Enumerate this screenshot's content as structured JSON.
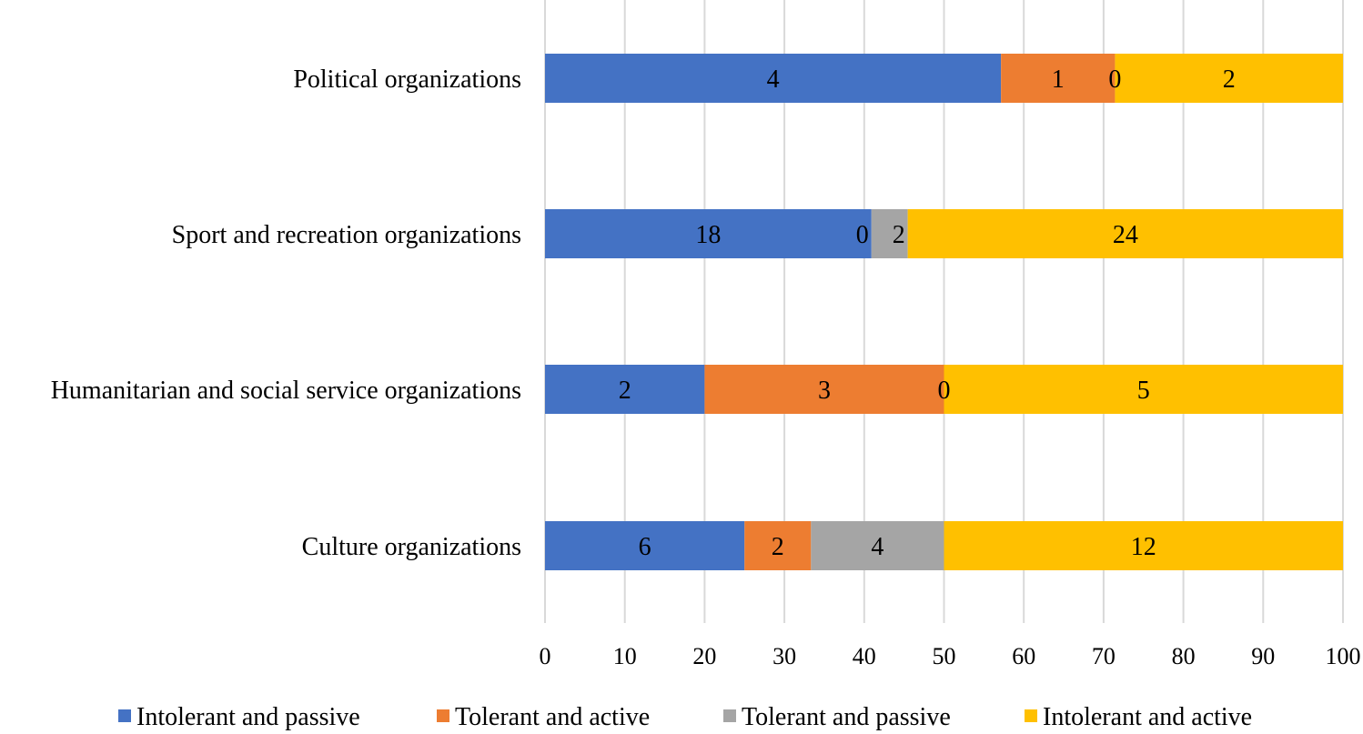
{
  "chart_data": {
    "type": "bar",
    "orientation": "horizontal",
    "stacked": "percent",
    "categories": [
      "Political organizations",
      "Sport and recreation organizations",
      "Humanitarian and social service organizations",
      "Culture organizations"
    ],
    "series": [
      {
        "name": "Intolerant and passive",
        "color": "#4472C4",
        "values": [
          4,
          18,
          2,
          6
        ]
      },
      {
        "name": "Tolerant and active",
        "color": "#ED7D31",
        "values": [
          1,
          0,
          3,
          2
        ]
      },
      {
        "name": "Tolerant and passive",
        "color": "#A5A5A5",
        "values": [
          0,
          2,
          0,
          4
        ]
      },
      {
        "name": "Intolerant and active",
        "color": "#FFC000",
        "values": [
          2,
          24,
          5,
          12
        ]
      }
    ],
    "xlim": [
      0,
      100
    ],
    "xticks": [
      0,
      10,
      20,
      30,
      40,
      50,
      60,
      70,
      80,
      90,
      100
    ],
    "grid": "vertical",
    "legend": "bottom",
    "title": "",
    "xlabel": "",
    "ylabel": ""
  }
}
